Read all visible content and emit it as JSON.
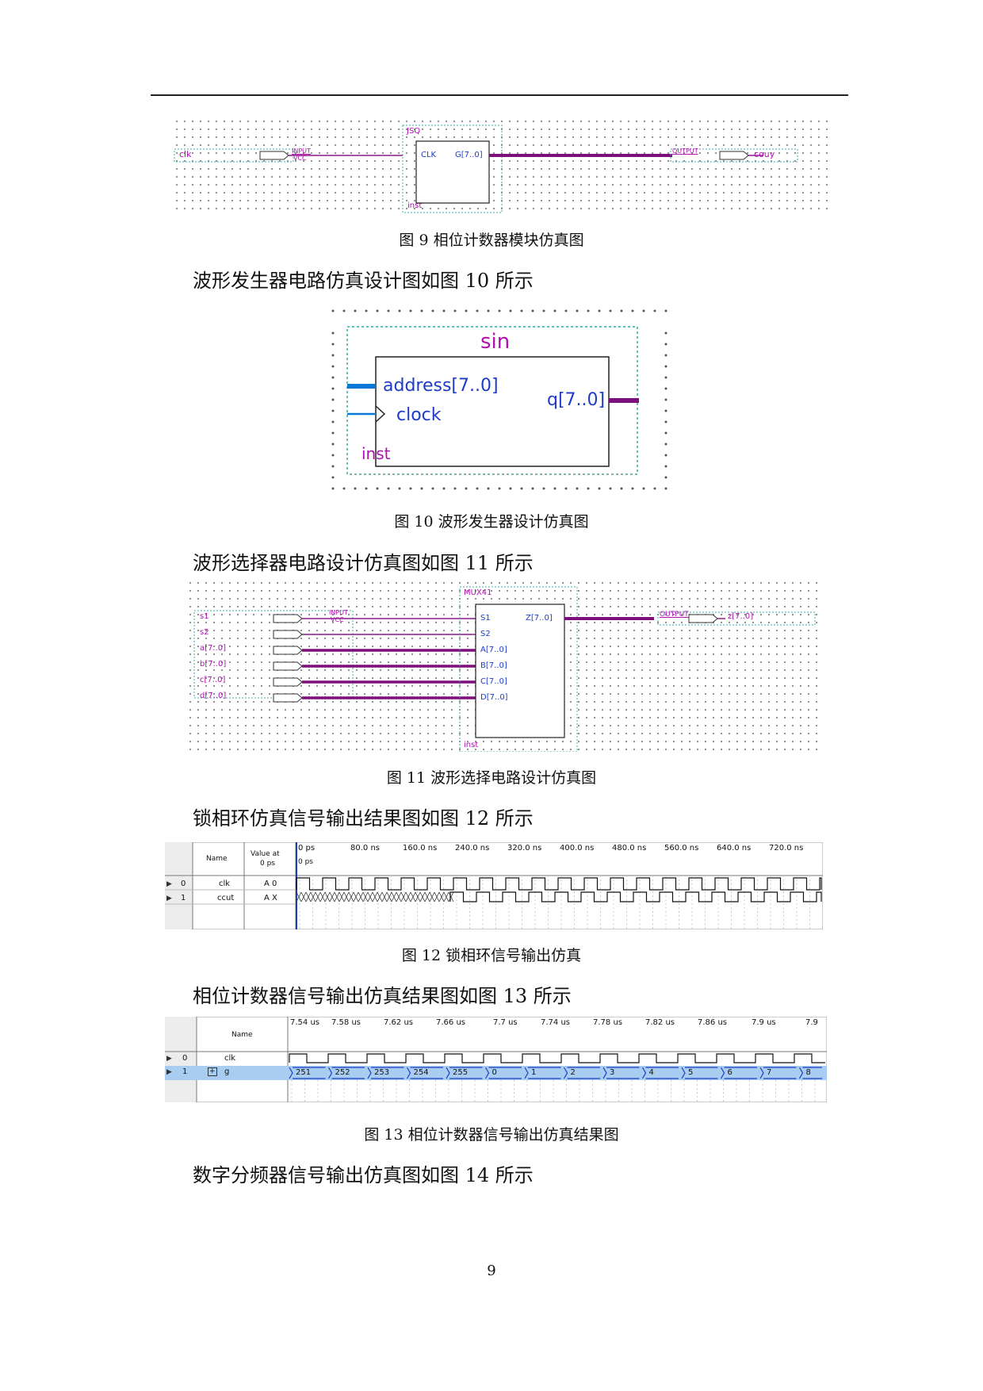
{
  "page_number": "9",
  "paragraphs": [
    "波形发生器电路仿真设计图如图 10 所示",
    "波形选择器电路设计仿真图如图 11 所示",
    "锁相环仿真信号输出结果图如图 12 所示",
    "相位计数器信号输出仿真结果图如图 13 所示",
    "数字分频器信号输出仿真图如图 14 所示"
  ],
  "captions": {
    "fig9": "图 9  相位计数器模块仿真图",
    "fig10": "图 10  波形发生器设计仿真图",
    "fig11": "图 11  波形选择电路设计仿真图",
    "fig12": "图 12  锁相环信号输出仿真",
    "fig13": "图 13  相位计数器信号输出仿真结果图"
  },
  "fig9": {
    "block_name": "JSQ",
    "inst": "inst",
    "in_pin": "CLK",
    "out_pin": "G[7..0]",
    "input_name": "clk",
    "output_name": "couy",
    "input_tag": "INPUT",
    "vcc_tag": "VCC",
    "output_tag": "OUTPUT"
  },
  "fig10": {
    "block_name": "sin",
    "pin_address": "address[7..0]",
    "pin_clock": "clock",
    "pin_q": "q[7..0]",
    "inst": "inst"
  },
  "fig11": {
    "block_name": "MUX41",
    "inst": "inst",
    "inputs": [
      "s1",
      "s2",
      "a[7..0]",
      "b[7..0]",
      "c[7..0]",
      "d[7..0]"
    ],
    "ports": [
      "S1",
      "S2",
      "A[7..0]",
      "B[7..0]",
      "C[7..0]",
      "D[7..0]"
    ],
    "out_port": "Z[7..0]",
    "output_name": "z[7..0]",
    "input_tag": "INPUT",
    "vcc_tag": "VCC",
    "output_tag": "OUTPUT"
  },
  "fig12": {
    "header_name": "Name",
    "header_value": "Value at",
    "header_value2": "0 ps",
    "cursor": "0 ps",
    "time_labels": [
      "0 ps",
      "80.0 ns",
      "160.0 ns",
      "240.0 ns",
      "320.0 ns",
      "400.0 ns",
      "480.0 ns",
      "560.0 ns",
      "640.0 ns",
      "720.0 ns"
    ],
    "signals": [
      {
        "index": "0",
        "name": "clk",
        "value": "A 0"
      },
      {
        "index": "1",
        "name": "ccut",
        "value": "A X"
      }
    ]
  },
  "fig13": {
    "header_name": "Name",
    "time_labels": [
      "7.54 us",
      "7.58 us",
      "7.62 us",
      "7.66 us",
      "7.7 us",
      "7.74 us",
      "7.78 us",
      "7.82 us",
      "7.86 us",
      "7.9 us",
      "7.9"
    ],
    "signals": [
      {
        "index": "0",
        "name": "clk"
      },
      {
        "index": "1",
        "name": "g"
      }
    ],
    "bus_values": [
      "251",
      "252",
      "253",
      "254",
      "255",
      "0",
      "1",
      "2",
      "3",
      "4",
      "5",
      "6",
      "7",
      "8"
    ]
  },
  "colors": {
    "wire_thin": "#8b1a8b",
    "wire_bus": "#7d0f7d",
    "bus_blue": "#0a78d8",
    "pin_blue": "#1c3cc8",
    "pin_magenta": "#b010b0",
    "selected_row": "#a9cdf0"
  }
}
